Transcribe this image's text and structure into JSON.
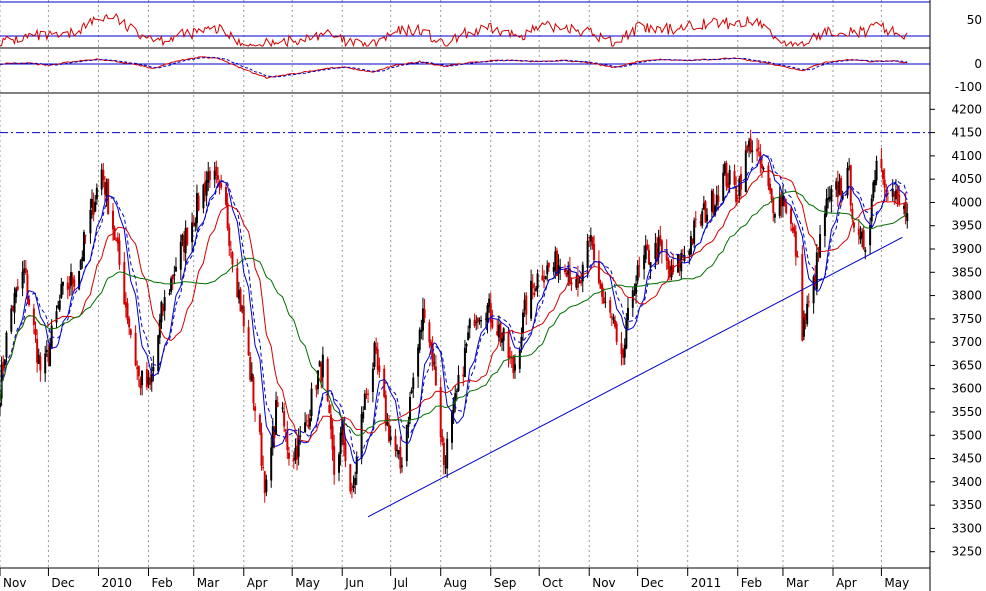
{
  "chart_data": {
    "type": "candlestick",
    "title": "",
    "colors": {
      "up_bar": "#000000",
      "down_bar": "#d40000",
      "ma_fast": "#0000cc",
      "ma_mid": "#d40000",
      "ma_slow": "#007000",
      "trendline": "#0000cc",
      "resistance": "#0000cc",
      "osc1_line": "#d40000",
      "osc2_line": "#d40000",
      "osc2_signal": "#0000cc",
      "grid": "#999999",
      "frame": "#0000cc"
    },
    "x_axis": {
      "labels": [
        "Nov",
        "Dec",
        "2010",
        "Feb",
        "Mar",
        "Apr",
        "May",
        "Jun",
        "Jul",
        "Aug",
        "Sep",
        "Oct",
        "Nov",
        "Dec",
        "2011",
        "Feb",
        "Mar",
        "Apr",
        "May"
      ],
      "range_days": [
        0,
        573
      ]
    },
    "main_panel": {
      "y_ticks": [
        4200,
        4150,
        4100,
        4050,
        4000,
        3950,
        3900,
        3850,
        3800,
        3750,
        3700,
        3650,
        3600,
        3550,
        3500,
        3450,
        3400,
        3350,
        3300,
        3250
      ],
      "ylim": [
        3215,
        4235
      ],
      "resistance_level": 4150,
      "price_anchors": [
        [
          0,
          3600
        ],
        [
          6,
          3760
        ],
        [
          15,
          3850
        ],
        [
          26,
          3620
        ],
        [
          38,
          3800
        ],
        [
          48,
          3850
        ],
        [
          58,
          4000
        ],
        [
          63,
          4070
        ],
        [
          70,
          3950
        ],
        [
          78,
          3780
        ],
        [
          86,
          3620
        ],
        [
          93,
          3600
        ],
        [
          100,
          3760
        ],
        [
          110,
          3880
        ],
        [
          122,
          3990
        ],
        [
          130,
          4070
        ],
        [
          140,
          3980
        ],
        [
          150,
          3760
        ],
        [
          158,
          3560
        ],
        [
          165,
          3380
        ],
        [
          172,
          3580
        ],
        [
          180,
          3450
        ],
        [
          188,
          3500
        ],
        [
          196,
          3620
        ],
        [
          200,
          3650
        ],
        [
          207,
          3420
        ],
        [
          212,
          3510
        ],
        [
          218,
          3360
        ],
        [
          225,
          3560
        ],
        [
          232,
          3670
        ],
        [
          240,
          3520
        ],
        [
          248,
          3430
        ],
        [
          256,
          3620
        ],
        [
          263,
          3780
        ],
        [
          270,
          3620
        ],
        [
          275,
          3440
        ],
        [
          285,
          3620
        ],
        [
          293,
          3760
        ],
        [
          301,
          3780
        ],
        [
          310,
          3720
        ],
        [
          318,
          3640
        ],
        [
          326,
          3780
        ],
        [
          334,
          3850
        ],
        [
          342,
          3860
        ],
        [
          350,
          3880
        ],
        [
          358,
          3800
        ],
        [
          366,
          3920
        ],
        [
          374,
          3780
        ],
        [
          380,
          3740
        ],
        [
          384,
          3620
        ],
        [
          392,
          3820
        ],
        [
          400,
          3880
        ],
        [
          408,
          3900
        ],
        [
          416,
          3840
        ],
        [
          425,
          3900
        ],
        [
          433,
          3960
        ],
        [
          441,
          4000
        ],
        [
          449,
          4060
        ],
        [
          456,
          4020
        ],
        [
          465,
          4130
        ],
        [
          471,
          4080
        ],
        [
          478,
          4000
        ],
        [
          486,
          4010
        ],
        [
          493,
          3900
        ],
        [
          497,
          3730
        ],
        [
          503,
          3800
        ],
        [
          511,
          3980
        ],
        [
          519,
          4030
        ],
        [
          526,
          4050
        ],
        [
          531,
          3900
        ],
        [
          537,
          3920
        ],
        [
          543,
          4100
        ],
        [
          549,
          4050
        ],
        [
          556,
          4000
        ],
        [
          562,
          3970
        ]
      ],
      "trendline": [
        [
          228,
          3325
        ],
        [
          559,
          3925
        ]
      ]
    },
    "osc_top": {
      "y_ticks": [
        50
      ],
      "levels": [
        100,
        50
      ],
      "anchors": [
        [
          0,
          40
        ],
        [
          20,
          50
        ],
        [
          40,
          48
        ],
        [
          60,
          75
        ],
        [
          70,
          80
        ],
        [
          80,
          60
        ],
        [
          100,
          45
        ],
        [
          120,
          55
        ],
        [
          135,
          60
        ],
        [
          150,
          40
        ],
        [
          160,
          30
        ],
        [
          170,
          45
        ],
        [
          185,
          40
        ],
        [
          200,
          55
        ],
        [
          215,
          40
        ],
        [
          230,
          35
        ],
        [
          245,
          55
        ],
        [
          260,
          60
        ],
        [
          275,
          35
        ],
        [
          290,
          55
        ],
        [
          305,
          60
        ],
        [
          320,
          50
        ],
        [
          335,
          62
        ],
        [
          350,
          65
        ],
        [
          365,
          55
        ],
        [
          380,
          40
        ],
        [
          395,
          62
        ],
        [
          410,
          58
        ],
        [
          425,
          65
        ],
        [
          440,
          70
        ],
        [
          455,
          68
        ],
        [
          470,
          72
        ],
        [
          480,
          48
        ],
        [
          495,
          30
        ],
        [
          505,
          50
        ],
        [
          520,
          60
        ],
        [
          535,
          55
        ],
        [
          545,
          65
        ],
        [
          555,
          55
        ],
        [
          560,
          50
        ]
      ]
    },
    "osc_bottom": {
      "y_ticks": [
        0,
        -100
      ],
      "level": 0,
      "anchors": [
        [
          0,
          0
        ],
        [
          15,
          5
        ],
        [
          30,
          -5
        ],
        [
          45,
          10
        ],
        [
          60,
          20
        ],
        [
          70,
          15
        ],
        [
          85,
          -5
        ],
        [
          95,
          -20
        ],
        [
          110,
          15
        ],
        [
          125,
          30
        ],
        [
          135,
          25
        ],
        [
          150,
          -20
        ],
        [
          165,
          -60
        ],
        [
          180,
          -45
        ],
        [
          200,
          -20
        ],
        [
          215,
          -15
        ],
        [
          230,
          -35
        ],
        [
          245,
          -5
        ],
        [
          260,
          10
        ],
        [
          275,
          -10
        ],
        [
          290,
          5
        ],
        [
          305,
          15
        ],
        [
          320,
          15
        ],
        [
          335,
          10
        ],
        [
          350,
          15
        ],
        [
          365,
          5
        ],
        [
          380,
          -15
        ],
        [
          395,
          10
        ],
        [
          410,
          20
        ],
        [
          425,
          15
        ],
        [
          440,
          20
        ],
        [
          455,
          25
        ],
        [
          470,
          10
        ],
        [
          485,
          -10
        ],
        [
          497,
          -30
        ],
        [
          510,
          5
        ],
        [
          525,
          20
        ],
        [
          540,
          10
        ],
        [
          552,
          15
        ],
        [
          562,
          5
        ]
      ]
    }
  }
}
